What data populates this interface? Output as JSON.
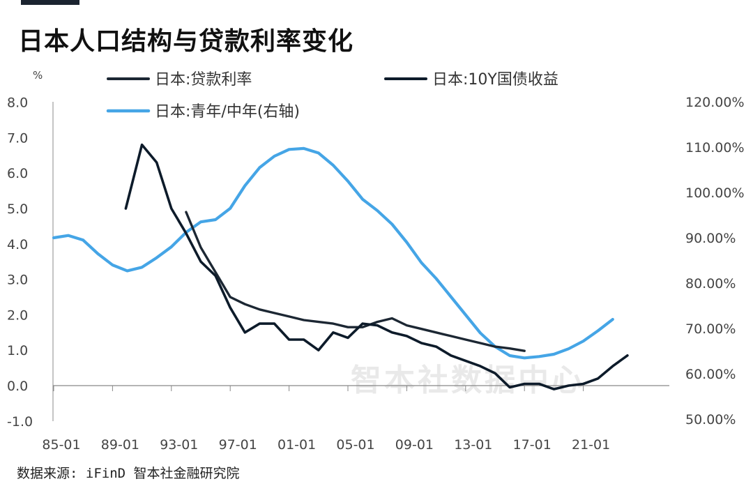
{
  "title": "日本人口结构与贷款利率变化",
  "source": "数据来源: iFinD 智本社金融研究院",
  "watermark": "智本社数据中心",
  "colors": {
    "loan_rate": "#1c2733",
    "bond_10y": "#0d1b2a",
    "youth_ratio": "#45a5e6"
  },
  "chart_data": {
    "type": "line",
    "left_axis": {
      "unit": "%",
      "ylim": [
        -1.0,
        8.0
      ],
      "ticks": [
        "8.0",
        "7.0",
        "6.0",
        "5.0",
        "4.0",
        "3.0",
        "2.0",
        "1.0",
        "0.0",
        "-1.0"
      ]
    },
    "right_axis": {
      "ylim": [
        0.5,
        1.2
      ],
      "ticks": [
        "120.00%",
        "110.00%",
        "100.00%",
        "90.00%",
        "80.00%",
        "70.00%",
        "60.00%",
        "50.00%"
      ]
    },
    "x_ticks": [
      "85-01",
      "89-01",
      "93-01",
      "97-01",
      "01-01",
      "05-01",
      "09-01",
      "13-01",
      "17-01",
      "21-01"
    ],
    "x_range": [
      1985,
      2026
    ],
    "legend": [
      {
        "key": "loan_rate",
        "label": "日本:贷款利率"
      },
      {
        "key": "bond_10y",
        "label": "日本:10Y国债收益"
      },
      {
        "key": "youth_ratio",
        "label": "日本:青年/中年(右轴)"
      }
    ],
    "series": [
      {
        "name": "日本:贷款利率",
        "key": "loan_rate",
        "axis": "left",
        "x": [
          1994,
          1995,
          1996,
          1997,
          1998,
          1999,
          2000,
          2001,
          2002,
          2003,
          2004,
          2005,
          2006,
          2007,
          2008,
          2009,
          2010,
          2011,
          2012,
          2013,
          2014,
          2015,
          2016,
          2017
        ],
        "y": [
          4.9,
          3.9,
          3.2,
          2.5,
          2.3,
          2.15,
          2.05,
          1.95,
          1.85,
          1.8,
          1.75,
          1.65,
          1.65,
          1.8,
          1.9,
          1.7,
          1.6,
          1.5,
          1.4,
          1.3,
          1.2,
          1.1,
          1.05,
          0.98
        ]
      },
      {
        "name": "日本:10Y国债收益",
        "key": "bond_10y",
        "axis": "left",
        "x": [
          1989.9,
          1991,
          1992,
          1993,
          1994,
          1995,
          1996,
          1997,
          1998,
          1999,
          2000,
          2001,
          2002,
          2003,
          2004,
          2005,
          2006,
          2007,
          2008,
          2009,
          2010,
          2011,
          2012,
          2013,
          2014,
          2015,
          2016,
          2017,
          2018,
          2019,
          2020,
          2021,
          2022,
          2023,
          2024
        ],
        "y": [
          5.0,
          6.8,
          6.3,
          5.0,
          4.3,
          3.5,
          3.1,
          2.2,
          1.5,
          1.75,
          1.75,
          1.3,
          1.3,
          1.0,
          1.5,
          1.35,
          1.75,
          1.7,
          1.5,
          1.4,
          1.2,
          1.1,
          0.85,
          0.7,
          0.55,
          0.35,
          -0.05,
          0.05,
          0.05,
          -0.1,
          0.0,
          0.05,
          0.2,
          0.55,
          0.85
        ]
      },
      {
        "name": "日本:青年/中年(右轴)",
        "key": "youth_ratio",
        "axis": "right",
        "x": [
          1985,
          1986,
          1987,
          1988,
          1989,
          1990,
          1991,
          1992,
          1993,
          1994,
          1995,
          1996,
          1997,
          1998,
          1999,
          2000,
          2001,
          2002,
          2003,
          2004,
          2005,
          2006,
          2007,
          2008,
          2009,
          2010,
          2011,
          2012,
          2013,
          2014,
          2015,
          2016,
          2017,
          2018,
          2019,
          2020,
          2021,
          2022,
          2023
        ],
        "y": [
          0.9,
          0.905,
          0.895,
          0.865,
          0.84,
          0.827,
          0.835,
          0.856,
          0.88,
          0.912,
          0.935,
          0.94,
          0.965,
          1.015,
          1.055,
          1.08,
          1.095,
          1.097,
          1.087,
          1.06,
          1.025,
          0.985,
          0.96,
          0.93,
          0.89,
          0.845,
          0.81,
          0.77,
          0.73,
          0.69,
          0.66,
          0.64,
          0.635,
          0.638,
          0.643,
          0.655,
          0.672,
          0.695,
          0.72
        ]
      }
    ]
  }
}
